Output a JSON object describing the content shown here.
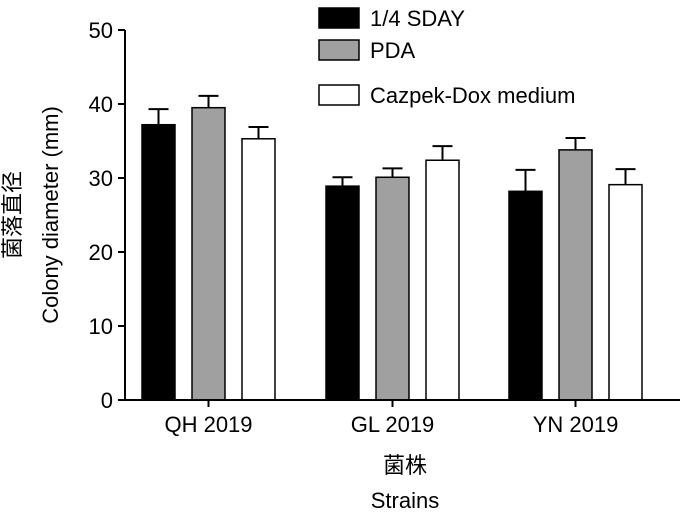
{
  "chart_data": {
    "type": "bar",
    "title": "",
    "categories": [
      "QH 2019",
      "GL 2019",
      "YN 2019"
    ],
    "series": [
      {
        "name": "1/4 SDAY",
        "color": "#000000",
        "values": [
          37.2,
          28.9,
          28.2
        ],
        "error": [
          2.1,
          1.2,
          2.9
        ]
      },
      {
        "name": "PDA",
        "color": "#a0a0a0",
        "values": [
          39.5,
          30.1,
          33.8
        ],
        "error": [
          1.6,
          1.2,
          1.6
        ]
      },
      {
        "name": "Cazpek-Dox medium",
        "color": "#ffffff",
        "values": [
          35.3,
          32.4,
          29.1
        ],
        "error": [
          1.6,
          1.9,
          2.1
        ]
      }
    ],
    "xlabel_cn": "菌株",
    "xlabel": "Strains",
    "ylabel_cn": "菌落直径",
    "ylabel": "Colony diameter (mm)",
    "ylim": [
      0,
      50
    ],
    "yticks": [
      0,
      10,
      20,
      30,
      40,
      50
    ],
    "grid": false,
    "legend_position": "top-right"
  }
}
